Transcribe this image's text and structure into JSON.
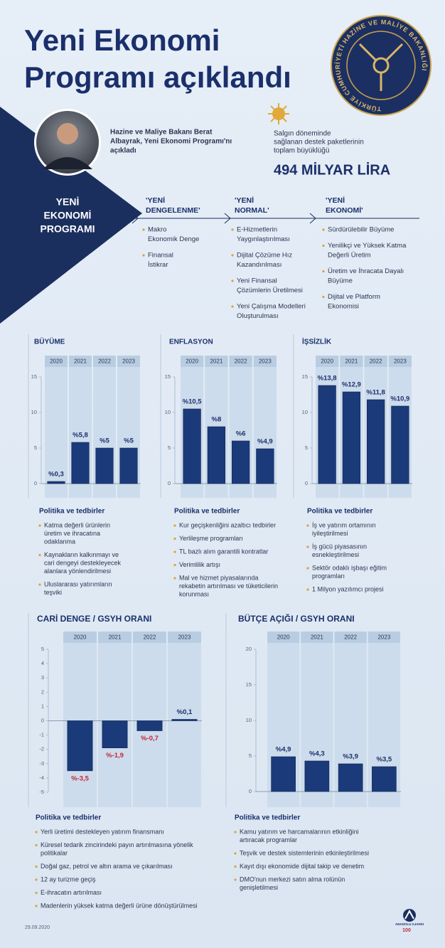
{
  "header": {
    "title_lines": [
      "Yeni Ekonomi",
      "Programı açıklandı"
    ],
    "seal_text": "TÜRKİYE CUMHURİYETİ HAZİNE VE MALİYE BAKANLIĞI"
  },
  "intro": {
    "minister_lines": [
      "Hazine ve Maliye Bakanı Berat",
      "Albayrak, Yeni Ekonomi Programı'nı",
      "açıkladı"
    ],
    "package_lines": [
      "Salgın döneminde",
      "sağlanan destek paketlerinin",
      "toplam büyüklüğü"
    ],
    "package_total": "494 MİLYAR LİRA"
  },
  "program": {
    "title_lines": [
      "YENİ",
      "EKONOMİ",
      "PROGRAMI"
    ],
    "columns": [
      {
        "title_lines": [
          "'YENİ",
          "DENGELENME'"
        ],
        "items": [
          [
            "Makro",
            "Ekonomik Denge"
          ],
          [
            "Finansal",
            "İstikrar"
          ]
        ]
      },
      {
        "title_lines": [
          "'YENİ",
          "NORMAL'"
        ],
        "items": [
          [
            "E-Hizmetlerin",
            "Yaygınlaştırılması"
          ],
          [
            "Dijital Çözüme Hız",
            "Kazandırılması"
          ],
          [
            "Yeni Finansal",
            "Çözümlerin Üretilmesi"
          ],
          [
            "Yeni Çalışma Modelleri",
            "Oluşturulması"
          ]
        ]
      },
      {
        "title_lines": [
          "'YENİ",
          "EKONOMİ'"
        ],
        "items": [
          [
            "Sürdürülebilir Büyüme"
          ],
          [
            "Yenilikçi ve Yüksek Katma",
            "Değerli Üretim"
          ],
          [
            "Üretim ve İhracata Dayalı",
            "Büyüme"
          ],
          [
            "Dijital ve Platform",
            "Ekonomisi"
          ]
        ]
      }
    ]
  },
  "chart_data": [
    {
      "type": "bar",
      "title": "BÜYÜME",
      "categories": [
        "2020",
        "2021",
        "2022",
        "2023"
      ],
      "values": [
        0.3,
        5.8,
        5,
        5
      ],
      "value_labels": [
        "%0,3",
        "%5,8",
        "%5",
        "%5"
      ],
      "color": "#1b3a7a",
      "ylim": [
        0,
        15
      ],
      "yticks": [
        0,
        5,
        10,
        15
      ],
      "grid": false
    },
    {
      "type": "bar",
      "title": "ENFLASYON",
      "categories": [
        "2020",
        "2021",
        "2022",
        "2023"
      ],
      "values": [
        10.5,
        8,
        6,
        4.9
      ],
      "value_labels": [
        "%10,5",
        "%8",
        "%6",
        "%4,9"
      ],
      "color": "#1b3a7a",
      "ylim": [
        0,
        15
      ],
      "yticks": [
        0,
        5,
        10,
        15
      ],
      "grid": false
    },
    {
      "type": "bar",
      "title": "İŞSİZLİK",
      "categories": [
        "2020",
        "2021",
        "2022",
        "2023"
      ],
      "values": [
        13.8,
        12.9,
        11.8,
        10.9
      ],
      "value_labels": [
        "%13,8",
        "%12,9",
        "%11,8",
        "%10,9"
      ],
      "color": "#1b3a7a",
      "ylim": [
        0,
        15
      ],
      "yticks": [
        0,
        5,
        10,
        15
      ],
      "grid": false
    },
    {
      "type": "bar",
      "title": "CARİ DENGE / GSYH ORANI",
      "categories": [
        "2020",
        "2021",
        "2022",
        "2023"
      ],
      "values": [
        -3.5,
        -1.9,
        -0.7,
        0.1
      ],
      "value_labels": [
        "%-3,5",
        "%-1,9",
        "%-0,7",
        "%0,1"
      ],
      "color": "#1b3a7a",
      "negative_label_color": "#c0283a",
      "ylim": [
        -5,
        5
      ],
      "yticks": [
        -5,
        -4,
        -3,
        -2,
        -1,
        0,
        1,
        2,
        3,
        4,
        5
      ],
      "grid": false
    },
    {
      "type": "bar",
      "title": "BÜTÇE AÇIĞI / GSYH ORANI",
      "categories": [
        "2020",
        "2021",
        "2022",
        "2023"
      ],
      "values": [
        4.9,
        4.3,
        3.9,
        3.5
      ],
      "value_labels": [
        "%4,9",
        "%4,3",
        "%3,9",
        "%3,5"
      ],
      "color": "#1b3a7a",
      "ylim": [
        0,
        20
      ],
      "yticks": [
        0,
        5,
        10,
        15,
        20
      ],
      "grid": false
    }
  ],
  "policies": [
    {
      "title": "Politika ve tedbirler",
      "items": [
        [
          "Katma değerli ürünlerin",
          "üretim ve ihracatına",
          "odaklanma"
        ],
        [
          "Kaynakların kalkınmayı ve",
          "cari dengeyi destekleyecek",
          "alanlara yönlendirilmesi"
        ],
        [
          "Uluslararası yatırımların",
          "teşviki"
        ]
      ]
    },
    {
      "title": "Politika ve tedbirler",
      "items": [
        [
          "Kur geçişkenliğini azaltıcı tedbirler"
        ],
        [
          "Yerlileşme programları"
        ],
        [
          "TL bazlı alım garantili kontratlar"
        ],
        [
          "Verimlilik artışı"
        ],
        [
          "Mal ve hizmet piyasalarında",
          "rekabetin artırılması ve tüketicilerin",
          "korunması"
        ]
      ]
    },
    {
      "title": "Politika ve tedbirler",
      "items": [
        [
          "İş ve yatırım ortamının",
          "iyileştirilmesi"
        ],
        [
          "İş gücü piyasasının",
          "esnekleştirilmesi"
        ],
        [
          "Sektör odaklı işbaşı eğitim",
          "programları"
        ],
        [
          "1 Milyon yazılımcı projesi"
        ]
      ]
    },
    {
      "title": "Politika ve tedbirler",
      "items": [
        [
          "Yerli üretimi destekleyen yatırım finansmanı"
        ],
        [
          "Küresel tedarik zincirindeki payın artırılmasına yönelik",
          "politikalar"
        ],
        [
          "Doğal gaz, petrol ve altın arama ve çıkarılması"
        ],
        [
          "12 ay turizme geçiş"
        ],
        [
          "E-ihracatın artırılması"
        ],
        [
          "Madenlerin yüksek katma değerli ürüne dönüştürülmesi"
        ]
      ]
    },
    {
      "title": "Politika ve tedbirler",
      "items": [
        [
          "Kamu yatırım ve harcamalarının etkinliğini",
          "artıracak programlar"
        ],
        [
          "Teşvik ve destek sistemlerinin etkinleştirilmesi"
        ],
        [
          "Kayıt dışı ekonomide dijital takip ve denetim"
        ],
        [
          "DMO'nun merkezi satın alma rolünün",
          "genişletilmesi"
        ]
      ]
    }
  ],
  "footer": {
    "date": "29.09.2020",
    "agency": "ANADOLU AJANSI",
    "anniversary": "100"
  }
}
